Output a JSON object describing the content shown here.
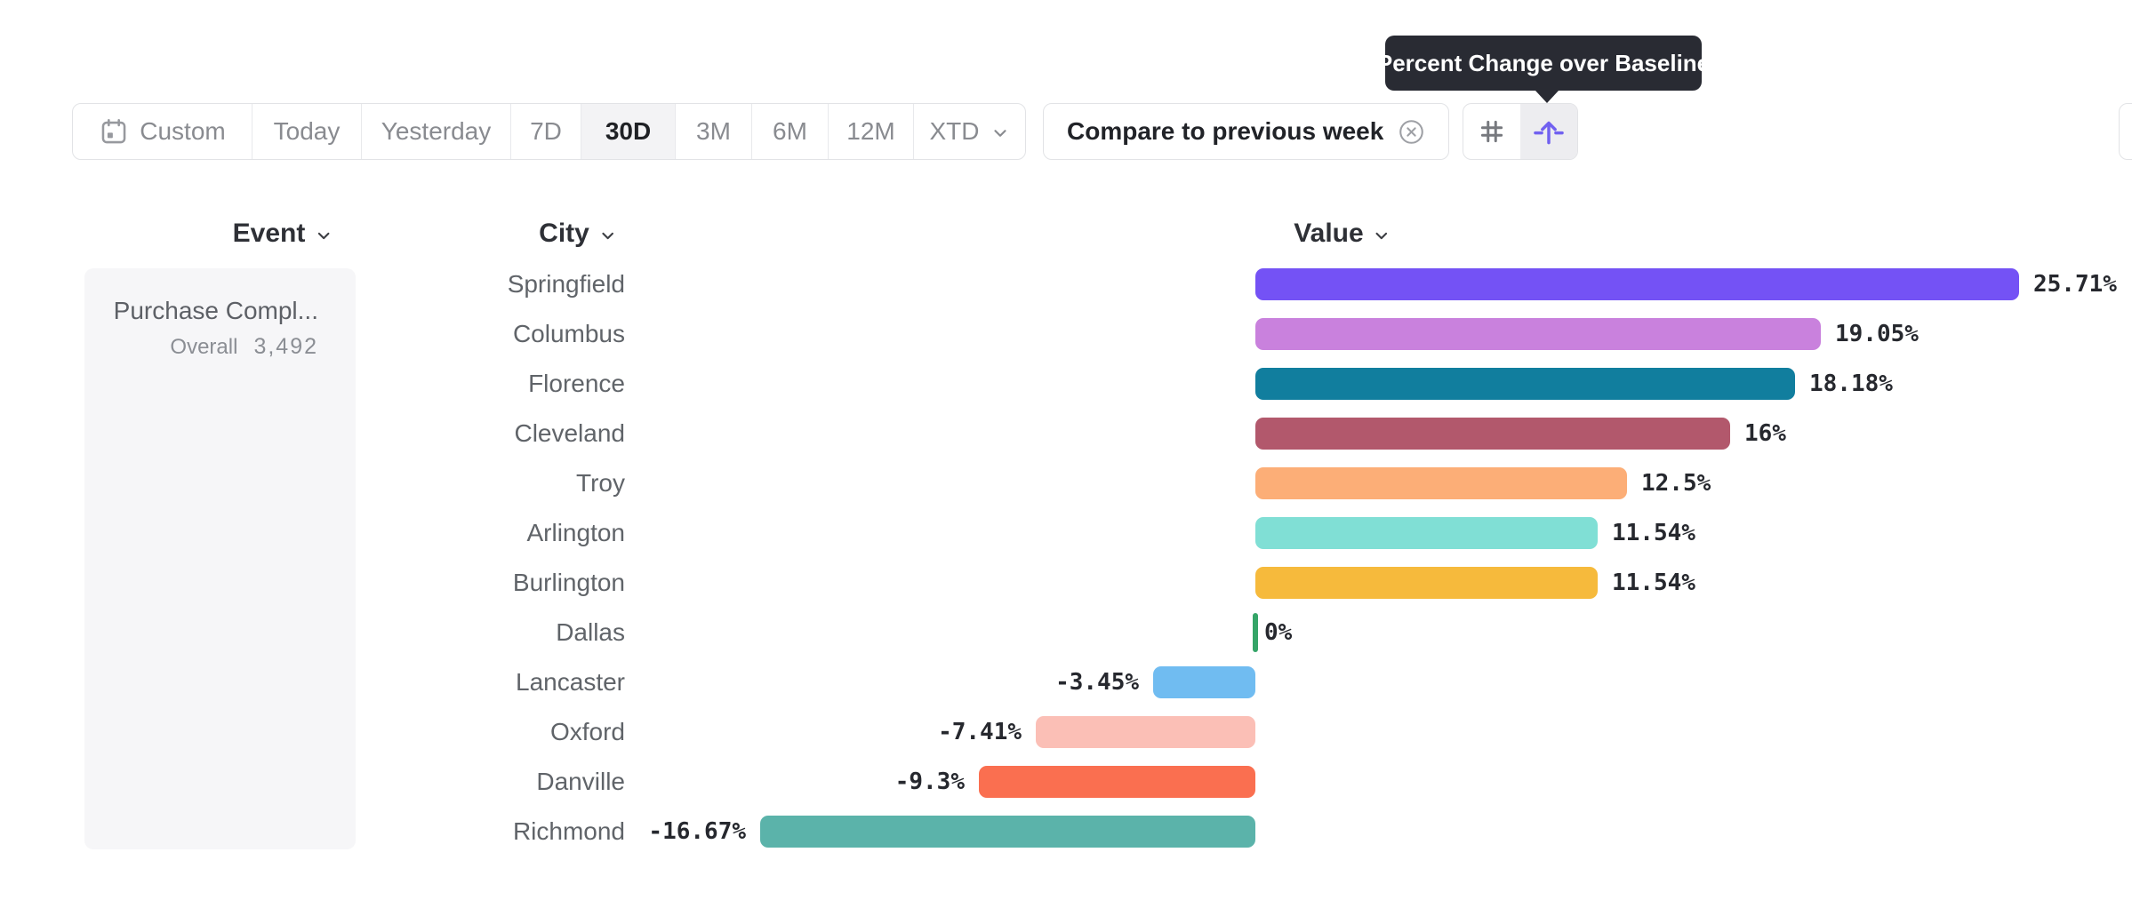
{
  "tooltip": {
    "text": "Percent Change over Baseline"
  },
  "toolbar": {
    "date_ranges": [
      {
        "label": "Custom",
        "icon": "calendar-icon",
        "active": false
      },
      {
        "label": "Today",
        "active": false
      },
      {
        "label": "Yesterday",
        "active": false
      },
      {
        "label": "7D",
        "active": false
      },
      {
        "label": "30D",
        "active": true
      },
      {
        "label": "3M",
        "active": false
      },
      {
        "label": "6M",
        "active": false
      },
      {
        "label": "12M",
        "active": false
      },
      {
        "label": "XTD",
        "icon": "chevron-down-icon",
        "active": false
      }
    ],
    "compare_chip": {
      "label": "Compare to previous week",
      "icon": "close-circle-icon"
    },
    "view_toggle": {
      "options": [
        {
          "name": "numeric-view",
          "icon": "hash-icon",
          "active": false
        },
        {
          "name": "percent-change-view",
          "icon": "baseline-arrow-icon",
          "active": true
        }
      ],
      "accent": "#7161f0"
    }
  },
  "columns": {
    "event": {
      "label": "Event",
      "icon": "chevron-down-icon"
    },
    "city": {
      "label": "City",
      "icon": "chevron-down-icon"
    },
    "value": {
      "label": "Value",
      "icon": "chevron-down-icon"
    }
  },
  "event_card": {
    "title": "Purchase Compl...",
    "overall_label": "Overall",
    "overall_value": "3,492"
  },
  "chart_data": {
    "type": "bar",
    "orientation": "horizontal",
    "unit": "percent_change_over_baseline",
    "categories": [
      "Springfield",
      "Columbus",
      "Florence",
      "Cleveland",
      "Troy",
      "Arlington",
      "Burlington",
      "Dallas",
      "Lancaster",
      "Oxford",
      "Danville",
      "Richmond"
    ],
    "values": [
      25.71,
      19.05,
      18.18,
      16,
      12.5,
      11.54,
      11.54,
      0,
      -3.45,
      -7.41,
      -9.3,
      -16.67
    ],
    "value_labels": [
      "25.71%",
      "19.05%",
      "18.18%",
      "16%",
      "12.5%",
      "11.54%",
      "11.54%",
      "0%",
      "-3.45%",
      "-7.41%",
      "-9.3%",
      "-16.67%"
    ],
    "bar_colors": [
      "#7452f5",
      "#c981dd",
      "#117e9e",
      "#b2586c",
      "#fcae77",
      "#80dfd5",
      "#f6ba3c",
      "#35a568",
      "#70bcf1",
      "#fbbfb6",
      "#fa6f50",
      "#5bb3aa"
    ],
    "zero_line_color": "#35a568",
    "xlim": [
      -20,
      30
    ],
    "grid": false,
    "legend": false
  }
}
